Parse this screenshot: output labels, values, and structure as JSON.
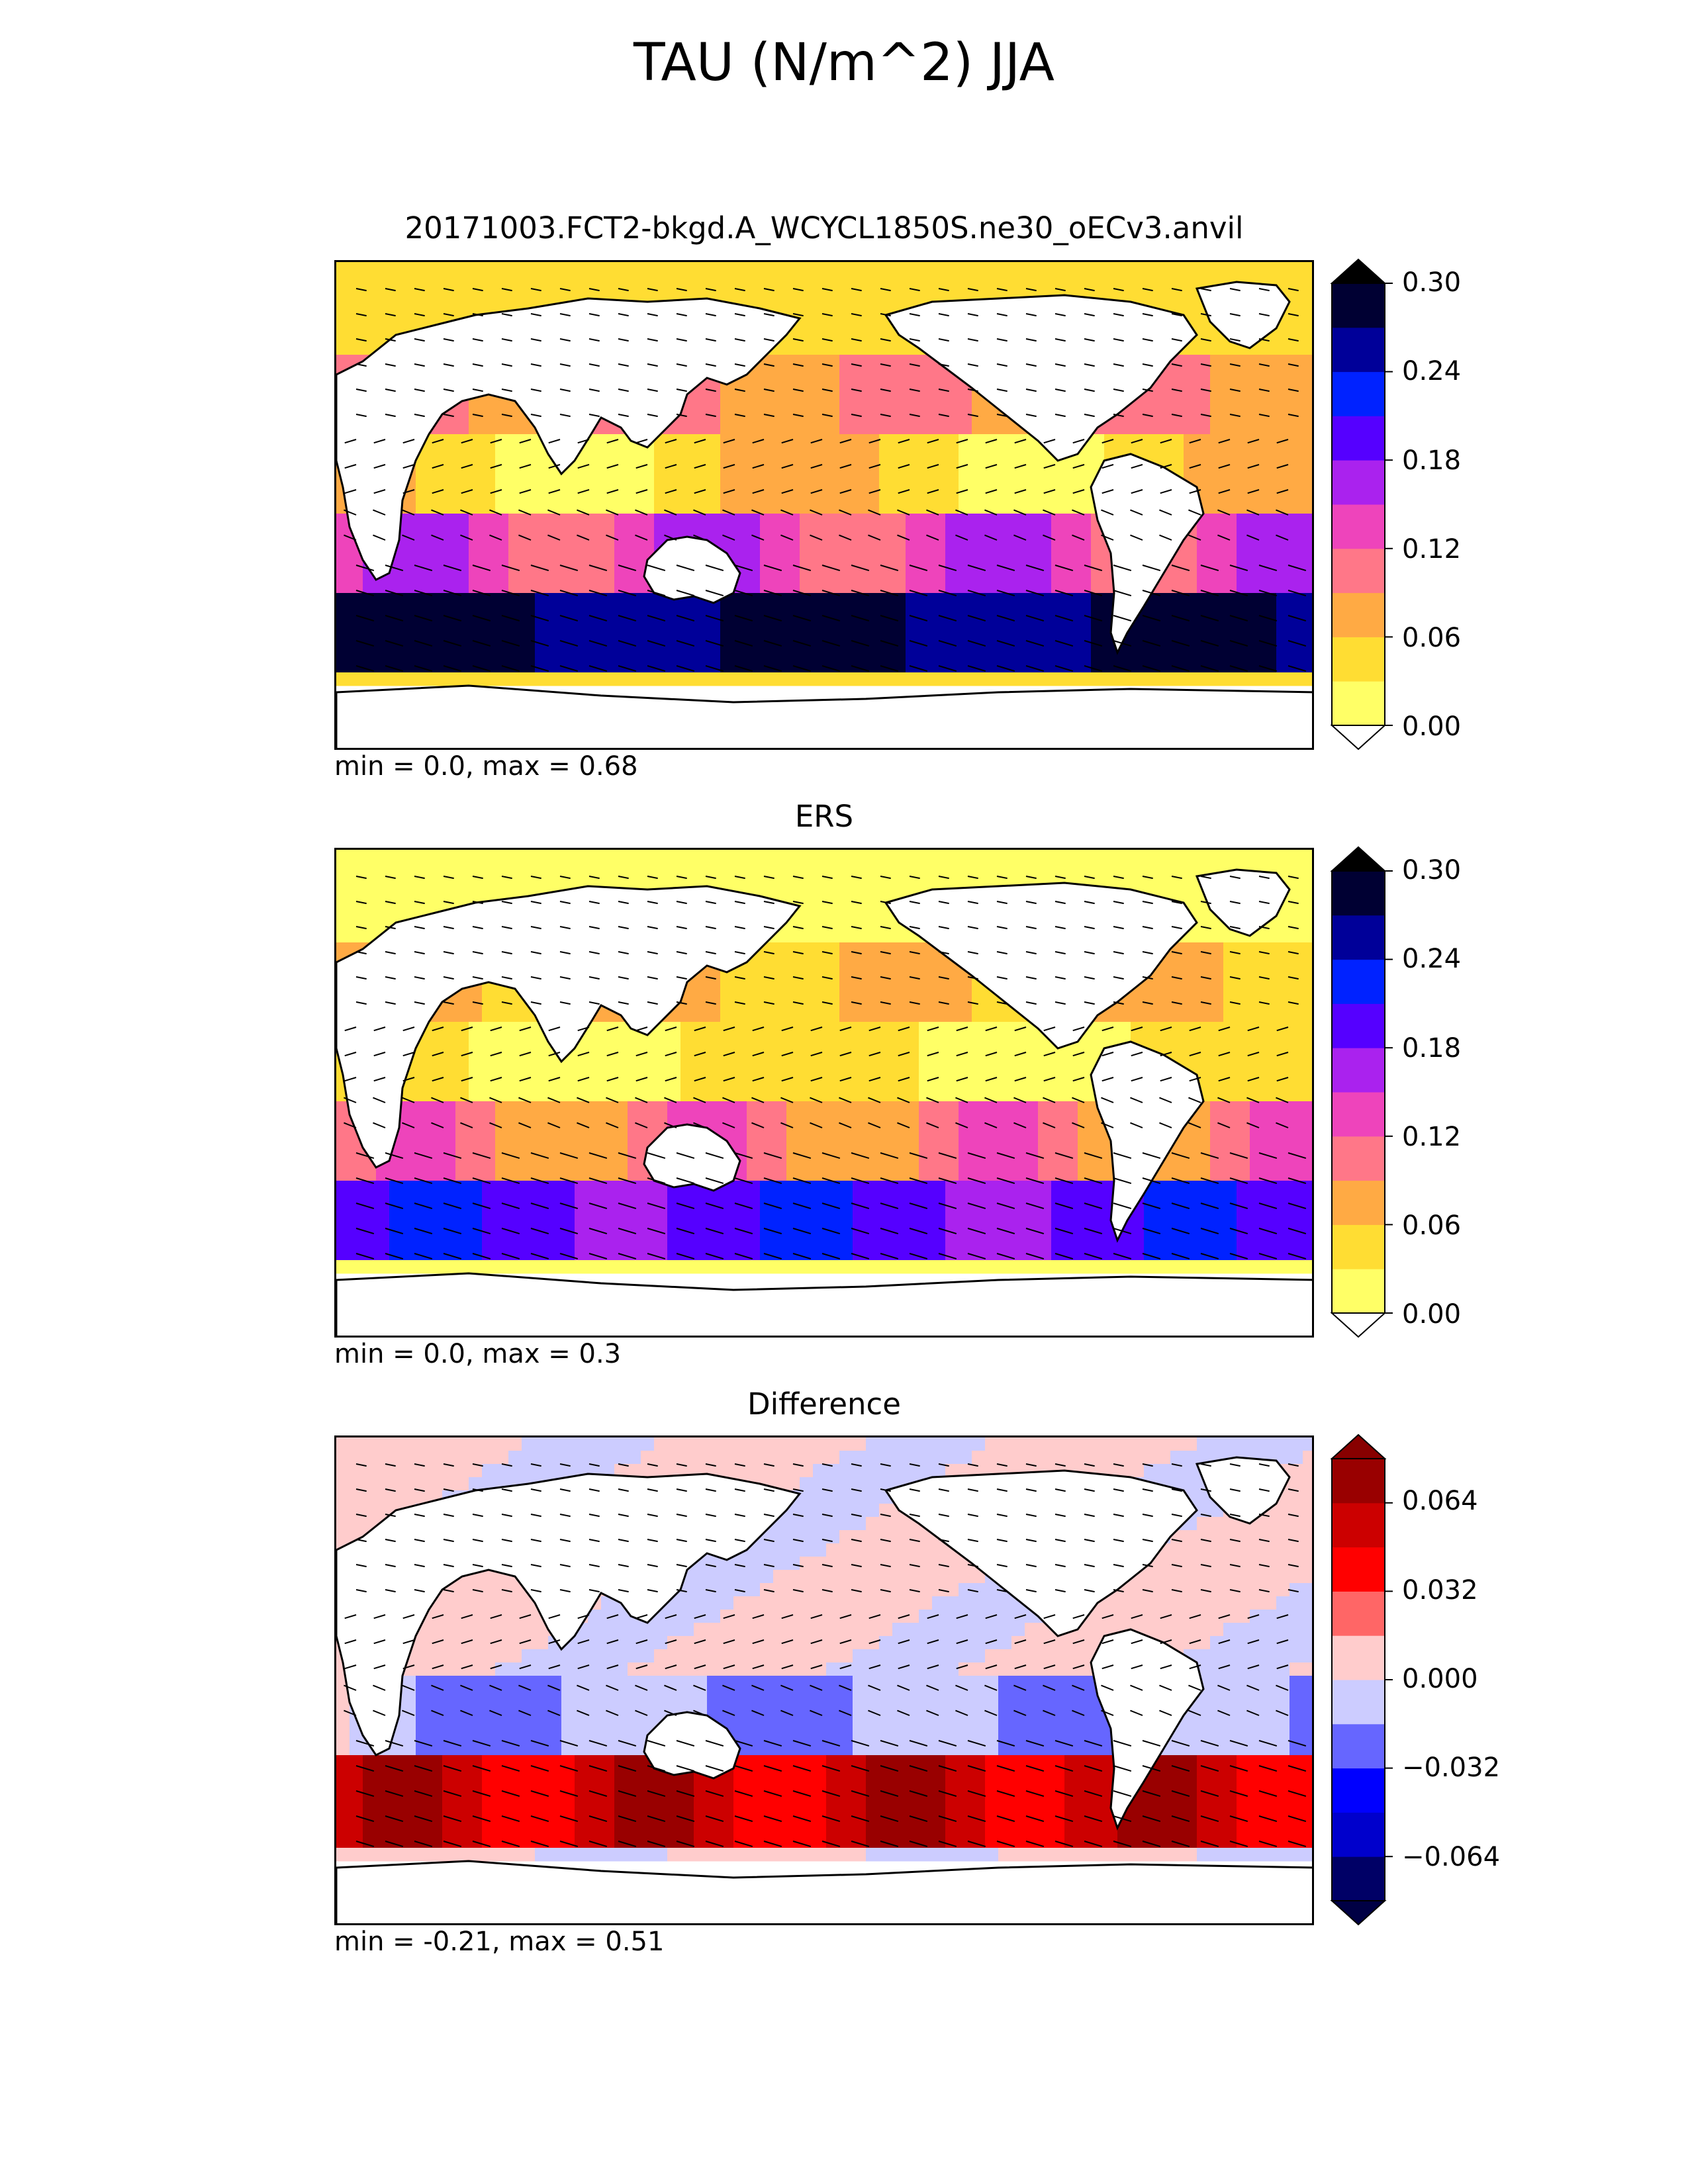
{
  "title": "TAU (N/m^2) JJA",
  "panels": [
    {
      "id": "model",
      "title": "20171003.FCT2-bkgd.A_WCYCL1850S.ne30_oECv3.anvil",
      "stats": "min = 0.0, max = 0.68",
      "colorbar": {
        "ticks": [
          "0.00",
          "0.06",
          "0.12",
          "0.18",
          "0.24",
          "0.30"
        ],
        "colors": [
          "#ffff66",
          "#ffdd33",
          "#ffaa44",
          "#ff7788",
          "#ee44bb",
          "#aa22ee",
          "#5500ff",
          "#0022ff",
          "#000099",
          "#000033"
        ],
        "under_color": "#ffffff",
        "over_color": "#000000"
      },
      "scale": "sequential"
    },
    {
      "id": "obs",
      "title": "ERS",
      "stats": "min = 0.0, max = 0.3",
      "colorbar": {
        "ticks": [
          "0.00",
          "0.06",
          "0.12",
          "0.18",
          "0.24",
          "0.30"
        ],
        "colors": [
          "#ffff66",
          "#ffdd33",
          "#ffaa44",
          "#ff7788",
          "#ee44bb",
          "#aa22ee",
          "#5500ff",
          "#0022ff",
          "#000099",
          "#000033"
        ],
        "under_color": "#ffffff",
        "over_color": "#000000"
      },
      "scale": "sequential_obs"
    },
    {
      "id": "diff",
      "title": "Difference",
      "stats": "min = -0.21, max = 0.51",
      "colorbar": {
        "ticks": [
          "0.064",
          "0.032",
          "0.000",
          "−0.032",
          "−0.064"
        ],
        "colors": [
          "#000066",
          "#0000cc",
          "#0000ff",
          "#6666ff",
          "#ccccff",
          "#ffcccc",
          "#ff6666",
          "#ff0000",
          "#cc0000",
          "#990000"
        ],
        "under_color": "#000044",
        "over_color": "#880000"
      },
      "scale": "diverging"
    }
  ]
}
